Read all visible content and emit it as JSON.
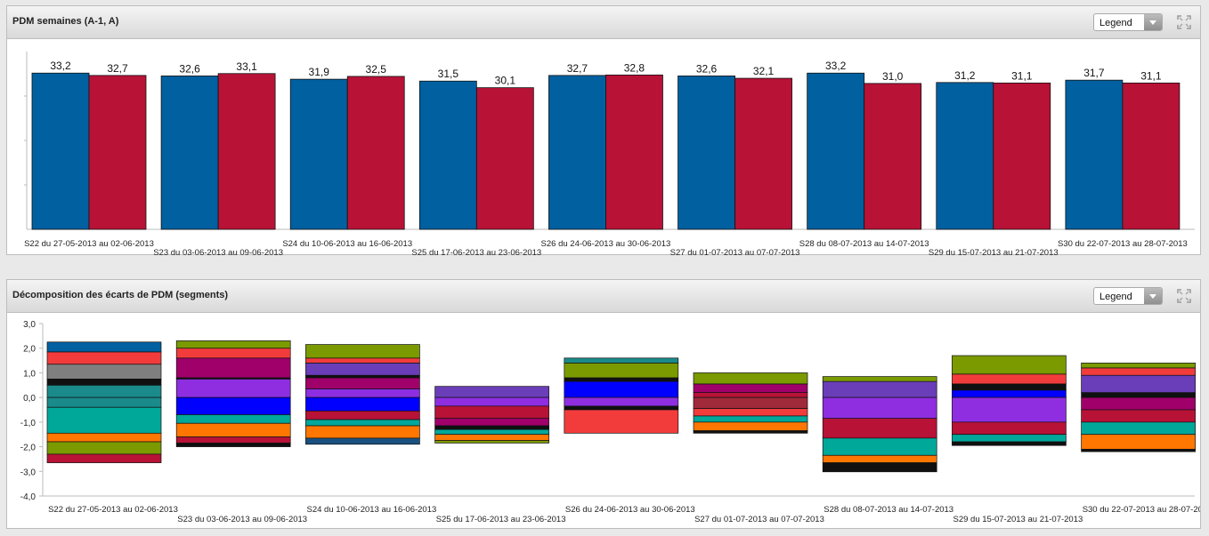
{
  "panel1": {
    "title": "PDM semaines (A-1, A)",
    "legend_label": "Legend"
  },
  "panel2": {
    "title": "Décomposition des écarts de PDM (segments)",
    "legend_label": "Legend"
  },
  "chart_data": [
    {
      "type": "bar",
      "title": "PDM semaines (A-1, A)",
      "categories": [
        "S22 du 27-05-2013 au 02-06-2013",
        "S23 du 03-06-2013 au 09-06-2013",
        "S24 du 10-06-2013 au 16-06-2013",
        "S25 du 17-06-2013 au 23-06-2013",
        "S26 du 24-06-2013 au 30-06-2013",
        "S27 du 01-07-2013 au 07-07-2013",
        "S28 du 08-07-2013 au 14-07-2013",
        "S29 du 15-07-2013 au 21-07-2013",
        "S30 du 22-07-2013 au 28-07-2013"
      ],
      "series": [
        {
          "values": [
            33.2,
            32.6,
            31.9,
            31.5,
            32.7,
            32.6,
            33.2,
            31.2,
            31.7
          ],
          "color": "#0060a0"
        },
        {
          "values": [
            32.7,
            33.1,
            32.5,
            30.1,
            32.8,
            32.1,
            31.0,
            31.1,
            31.1
          ],
          "color": "#b81237"
        }
      ],
      "value_labels": [
        [
          "33,2",
          "32,6",
          "31,9",
          "31,5",
          "32,7",
          "32,6",
          "33,2",
          "31,2",
          "31,7"
        ],
        [
          "32,7",
          "33,1",
          "32,5",
          "30,1",
          "32,8",
          "32,1",
          "31,0",
          "31,1",
          "31,1"
        ]
      ],
      "ylim": [
        0,
        34
      ],
      "grid": false,
      "legend": "hidden"
    },
    {
      "type": "bar",
      "stacked": true,
      "title": "Décomposition des écarts de PDM (segments)",
      "categories": [
        "S22 du 27-05-2013 au 02-06-2013",
        "S23 du 03-06-2013 au 09-06-2013",
        "S24 du 10-06-2013 au 16-06-2013",
        "S25 du 17-06-2013 au 23-06-2013",
        "S26 du 24-06-2013 au 30-06-2013",
        "S27 du 01-07-2013 au 07-07-2013",
        "S28 du 08-07-2013 au 14-07-2013",
        "S29 du 15-07-2013 au 21-07-2013",
        "S30 du 22-07-2013 au 28-07-2013"
      ],
      "ylim": [
        -4.0,
        3.0
      ],
      "yticks": [
        "3,0",
        "2,0",
        "1,0",
        "0,0",
        "-1,0",
        "-2,0",
        "-3,0",
        "-4,0"
      ],
      "ytick_values": [
        3,
        2,
        1,
        0,
        -1,
        -2,
        -3,
        -4
      ],
      "legend": "hidden",
      "segments": [
        {
          "positive": [
            [
              0.5,
              "#1a8a8a"
            ],
            [
              0.25,
              "#101010"
            ],
            [
              0.6,
              "#7f7f7f"
            ],
            [
              0.5,
              "#f23c3c"
            ],
            [
              0.4,
              "#0060a0"
            ]
          ],
          "negative": [
            [
              0.4,
              "#1a8a8a"
            ],
            [
              1.05,
              "#00a89a"
            ],
            [
              0.35,
              "#ff7700"
            ],
            [
              0.5,
              "#7a9a00"
            ],
            [
              0.35,
              "#b81237"
            ]
          ]
        },
        {
          "positive": [
            [
              0.75,
              "#8e2ee0"
            ],
            [
              0.05,
              "#101010"
            ],
            [
              0.8,
              "#a0006a"
            ],
            [
              0.4,
              "#f23c3c"
            ],
            [
              0.3,
              "#7a9a00"
            ]
          ],
          "negative": [
            [
              0.7,
              "#0000ff"
            ],
            [
              0.35,
              "#00a89a"
            ],
            [
              0.55,
              "#ff7700"
            ],
            [
              0.25,
              "#b81237"
            ],
            [
              0.15,
              "#101010"
            ]
          ]
        },
        {
          "positive": [
            [
              0.35,
              "#8e2ee0"
            ],
            [
              0.45,
              "#a0006a"
            ],
            [
              0.1,
              "#101010"
            ],
            [
              0.5,
              "#6a3eb8"
            ],
            [
              0.2,
              "#f23c3c"
            ],
            [
              0.55,
              "#7a9a00"
            ]
          ],
          "negative": [
            [
              0.55,
              "#0000ff"
            ],
            [
              0.35,
              "#b81237"
            ],
            [
              0.25,
              "#00a89a"
            ],
            [
              0.5,
              "#ff7700"
            ],
            [
              0.25,
              "#1a5080"
            ]
          ]
        },
        {
          "positive": [
            [
              0.45,
              "#6a3eb8"
            ]
          ],
          "negative": [
            [
              0.35,
              "#8e2ee0"
            ],
            [
              0.5,
              "#b81237"
            ],
            [
              0.3,
              "#a0006a"
            ],
            [
              0.15,
              "#101010"
            ],
            [
              0.2,
              "#00a89a"
            ],
            [
              0.25,
              "#ff7700"
            ],
            [
              0.1,
              "#7a9a00"
            ]
          ]
        },
        {
          "positive": [
            [
              0.65,
              "#0000ff"
            ],
            [
              0.15,
              "#101010"
            ],
            [
              0.6,
              "#7a9a00"
            ],
            [
              0.2,
              "#1a8a8a"
            ]
          ],
          "negative": [
            [
              0.35,
              "#8e2ee0"
            ],
            [
              0.15,
              "#101010"
            ],
            [
              0.95,
              "#f23c3c"
            ]
          ]
        },
        {
          "positive": [
            [
              0.2,
              "#b81237"
            ],
            [
              0.35,
              "#a0006a"
            ],
            [
              0.45,
              "#7a9a00"
            ]
          ],
          "negative": [
            [
              0.45,
              "#a02a3a"
            ],
            [
              0.3,
              "#f23c3c"
            ],
            [
              0.25,
              "#00a89a"
            ],
            [
              0.35,
              "#ff7700"
            ],
            [
              0.1,
              "#101010"
            ]
          ]
        },
        {
          "positive": [
            [
              0.65,
              "#6a3eb8"
            ],
            [
              0.2,
              "#7a9a00"
            ]
          ],
          "negative": [
            [
              0.85,
              "#8e2ee0"
            ],
            [
              0.8,
              "#b81237"
            ],
            [
              0.7,
              "#00a89a"
            ],
            [
              0.3,
              "#ff7700"
            ],
            [
              0.35,
              "#101010"
            ],
            [
              0.0,
              "#1a8a8a"
            ]
          ]
        },
        {
          "positive": [
            [
              0.3,
              "#0000ff"
            ],
            [
              0.25,
              "#101010"
            ],
            [
              0.4,
              "#f23c3c"
            ],
            [
              0.75,
              "#7a9a00"
            ]
          ],
          "negative": [
            [
              1.0,
              "#8e2ee0"
            ],
            [
              0.5,
              "#b81237"
            ],
            [
              0.3,
              "#00a89a"
            ],
            [
              0.15,
              "#101010"
            ]
          ]
        },
        {
          "positive": [
            [
              0.2,
              "#101010"
            ],
            [
              0.7,
              "#6a3eb8"
            ],
            [
              0.3,
              "#f23c3c"
            ],
            [
              0.2,
              "#7a9a00"
            ]
          ],
          "negative": [
            [
              0.5,
              "#a0006a"
            ],
            [
              0.5,
              "#b81237"
            ],
            [
              0.5,
              "#00a89a"
            ],
            [
              0.6,
              "#ff7700"
            ],
            [
              0.1,
              "#101010"
            ]
          ]
        }
      ]
    }
  ]
}
